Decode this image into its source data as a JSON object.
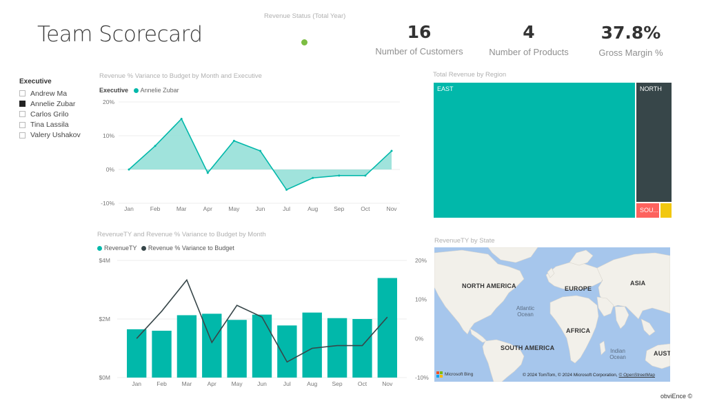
{
  "page": {
    "title": "Team Scorecard"
  },
  "status": {
    "label": "Revenue Status (Total Year)",
    "color": "#7cbd42"
  },
  "kpis": [
    {
      "value": "16",
      "label": "Number of Customers"
    },
    {
      "value": "4",
      "label": "Number of Products"
    },
    {
      "value": "37.8%",
      "label": "Gross Margin %"
    }
  ],
  "slicer": {
    "title": "Executive",
    "items": [
      {
        "label": "Andrew Ma",
        "checked": false
      },
      {
        "label": "Annelie Zubar",
        "checked": true
      },
      {
        "label": "Carlos Grilo",
        "checked": false
      },
      {
        "label": "Tina Lassila",
        "checked": false
      },
      {
        "label": "Valery Ushakov",
        "checked": false
      }
    ]
  },
  "colors": {
    "teal": "#01b8aa",
    "teal_fill": "#8fded6",
    "dark": "#374649",
    "red": "#fd625e",
    "yellow": "#f2c80f",
    "map_water": "#a6c6ec",
    "map_land": "#f1efe9"
  },
  "chart_data": [
    {
      "type": "area",
      "title": "Revenue % Variance to Budget by Month and Executive",
      "legend": {
        "title": "Executive",
        "items": [
          "Annelie Zubar"
        ]
      },
      "categories": [
        "Jan",
        "Feb",
        "Mar",
        "Apr",
        "May",
        "Jun",
        "Jul",
        "Aug",
        "Sep",
        "Oct",
        "Nov"
      ],
      "series": [
        {
          "name": "Annelie Zubar",
          "values": [
            0,
            7,
            15,
            -1,
            8.5,
            5.5,
            -6,
            -2.5,
            -1.8,
            -1.8,
            5.5
          ]
        }
      ],
      "ylim": [
        -10,
        20
      ],
      "yticks": [
        "20%",
        "10%",
        "0%",
        "-10%"
      ],
      "ytick_values": [
        20,
        10,
        0,
        -10
      ],
      "grid": true
    },
    {
      "type": "bar",
      "title": "RevenueTY and Revenue % Variance to Budget by Month",
      "legend": {
        "items": [
          "RevenueTY",
          "Revenue % Variance to Budget"
        ]
      },
      "categories": [
        "Jan",
        "Feb",
        "Mar",
        "Apr",
        "May",
        "Jun",
        "Jul",
        "Aug",
        "Sep",
        "Oct",
        "Nov"
      ],
      "series": [
        {
          "name": "RevenueTY",
          "type": "bar",
          "values": [
            1.65,
            1.6,
            2.13,
            2.18,
            1.97,
            2.15,
            1.78,
            2.22,
            2.03,
            2.0,
            3.4
          ]
        },
        {
          "name": "Revenue % Variance to Budget",
          "type": "line",
          "values": [
            0,
            7,
            15,
            -1,
            8.5,
            5.5,
            -6,
            -2.5,
            -1.8,
            -1.8,
            5.5
          ]
        }
      ],
      "ylim_left": [
        0,
        4
      ],
      "yticks_left": [
        "$4M",
        "$2M",
        "$0M"
      ],
      "ytick_values_left": [
        4,
        2,
        0
      ],
      "ylim_right": [
        -10,
        20
      ],
      "yticks_right": [
        "20%",
        "10%",
        "0%",
        "-10%"
      ],
      "ytick_values_right": [
        20,
        10,
        0,
        -10
      ]
    }
  ],
  "treemap": {
    "title": "Total Revenue by Region",
    "regions": [
      {
        "label": "EAST",
        "color": "#01b8aa"
      },
      {
        "label": "NORTH",
        "color": "#374649"
      },
      {
        "label": "SOU...",
        "color": "#fd625e"
      },
      {
        "label": "",
        "color": "#f2c80f"
      }
    ]
  },
  "map": {
    "title": "RevenueTY by State",
    "labels": {
      "north_america": "NORTH AMERICA",
      "europe": "EUROPE",
      "asia": "ASIA",
      "africa": "AFRICA",
      "south_america": "SOUTH AMERICA",
      "australia": "AUSTI",
      "atlantic": "Atlantic Ocean",
      "indian": "Indian Ocean"
    },
    "logo": "Microsoft Bing",
    "attribution": "© 2024 TomTom, © 2024 Microsoft Corporation,",
    "osm_link": "© OpenStreetMap"
  },
  "watermark": "obviEnce ©"
}
